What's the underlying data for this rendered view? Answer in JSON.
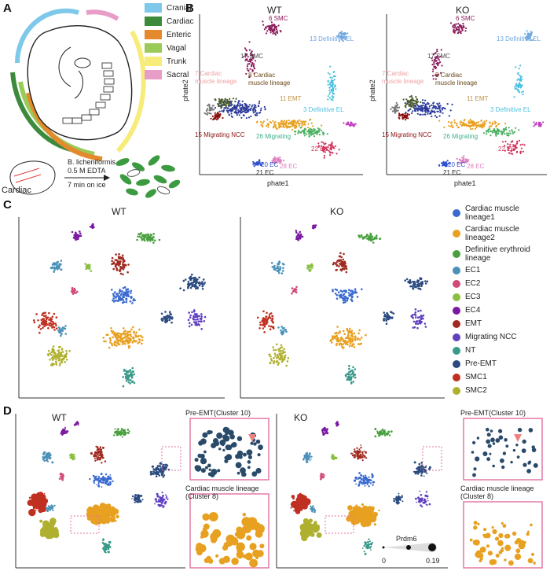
{
  "panels": {
    "a": "A",
    "b": "B",
    "c": "C",
    "d": "D"
  },
  "panel_a": {
    "region_legend": [
      {
        "label": "Cranial",
        "color": "#7ec8ea"
      },
      {
        "label": "Cardiac",
        "color": "#3c8a3c"
      },
      {
        "label": "Enteric",
        "color": "#e48a2c"
      },
      {
        "label": "Vagal",
        "color": "#9acb59"
      },
      {
        "label": "Trunk",
        "color": "#f7ec7a"
      },
      {
        "label": "Sacral",
        "color": "#e89cc8"
      }
    ],
    "protocol": {
      "enzyme": "B. licheniformis",
      "buffer": "0.5 M EDTA",
      "time": "7 min on ice",
      "region": "Cardiac"
    }
  },
  "panel_b": {
    "wt_title": "WT",
    "ko_title": "KO",
    "xlabel": "phate1",
    "ylabel": "phate2",
    "cluster_labels": [
      {
        "text": "6 SMC",
        "color": "#8b1a5a"
      },
      {
        "text": "13 Definitive EL",
        "color": "#6fa7e0"
      },
      {
        "text": "17 SMC",
        "color": "#4a4a4a"
      },
      {
        "text": "7 Cardiac",
        "color": "#f0a0a0"
      },
      {
        "text": "muscle lineage",
        "color": "#f0a0a0"
      },
      {
        "text": "8 Cardiac",
        "color": "#6b4a1a"
      },
      {
        "text": "muscle lineage",
        "color": "#6b4a1a"
      },
      {
        "text": "11 EMT",
        "color": "#c09040"
      },
      {
        "text": "3 Definitive EL",
        "color": "#4ac0e0"
      },
      {
        "text": "15 Migrating NCC",
        "color": "#8b1010"
      },
      {
        "text": "26 Migrating",
        "color": "#3cb08a"
      },
      {
        "text": "22 EC",
        "color": "#d0305a"
      },
      {
        "text": "20 EC",
        "color": "#3050d0"
      },
      {
        "text": "28 EC",
        "color": "#e080c0"
      },
      {
        "text": "21 EC",
        "color": "#222222"
      }
    ]
  },
  "panel_c": {
    "wt_title": "WT",
    "ko_title": "KO",
    "legend": [
      {
        "label": "Cardiac muscle lineage1",
        "color": "#3a6ad0"
      },
      {
        "label": "Cardiac muscle lineage2",
        "color": "#e8a020"
      },
      {
        "label": "Definitive erythroid lineage",
        "color": "#4aa040"
      },
      {
        "label": "EC1",
        "color": "#4a90b8"
      },
      {
        "label": "EC2",
        "color": "#d04a7a"
      },
      {
        "label": "EC3",
        "color": "#8ac040"
      },
      {
        "label": "EC4",
        "color": "#7a1aa0"
      },
      {
        "label": "EMT",
        "color": "#a02a20"
      },
      {
        "label": "Migrating NCC",
        "color": "#6040c0"
      },
      {
        "label": "NT",
        "color": "#3a9a8a"
      },
      {
        "label": "Pre-EMT",
        "color": "#2a4a80"
      },
      {
        "label": "SMC1",
        "color": "#c03020"
      },
      {
        "label": "SMC2",
        "color": "#b0b030"
      }
    ]
  },
  "panel_d": {
    "wt_title": "WT",
    "ko_title": "KO",
    "inset_pre_emt": "Pre-EMT(Cluster 10)",
    "inset_cardiac": "Cardiac muscle lineage",
    "inset_cardiac_2": "(Cluster 8)",
    "gene": "Prdm6",
    "scale_min": "0",
    "scale_max": "0.19"
  }
}
